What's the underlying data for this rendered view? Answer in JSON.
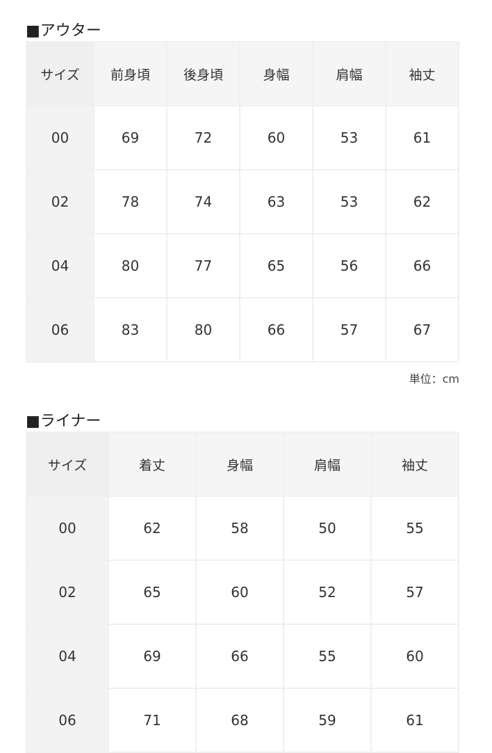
{
  "outer": {
    "title": "■アウター",
    "headers": [
      "サイズ",
      "前身頃",
      "後身頃",
      "身幅",
      "肩幅",
      "袖丈"
    ],
    "rows": [
      [
        "00",
        "69",
        "72",
        "60",
        "53",
        "61"
      ],
      [
        "02",
        "78",
        "74",
        "63",
        "53",
        "62"
      ],
      [
        "04",
        "80",
        "77",
        "65",
        "56",
        "66"
      ],
      [
        "06",
        "83",
        "80",
        "66",
        "57",
        "67"
      ]
    ],
    "unit": "単位：cm"
  },
  "liner": {
    "title": "■ライナー",
    "headers": [
      "サイズ",
      "着丈",
      "身幅",
      "肩幅",
      "袖丈"
    ],
    "rows": [
      [
        "00",
        "62",
        "58",
        "50",
        "55"
      ],
      [
        "02",
        "65",
        "60",
        "52",
        "57"
      ],
      [
        "04",
        "69",
        "66",
        "55",
        "60"
      ],
      [
        "06",
        "71",
        "68",
        "59",
        "61"
      ]
    ]
  }
}
